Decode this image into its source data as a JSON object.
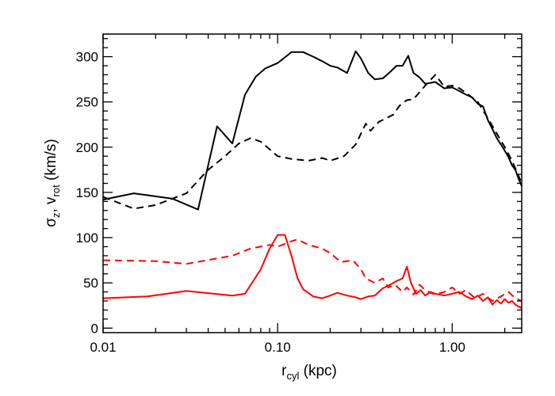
{
  "chart_data": {
    "type": "line",
    "title": "",
    "xlabel": {
      "main": "r",
      "sub": "cyl",
      "rest": " (kpc)"
    },
    "ylabel": {
      "p1": "σ",
      "s1": "z",
      "p2": ", v",
      "s2": "rot",
      "p3": " (km/s)"
    },
    "xscale": "log",
    "xlim": [
      0.01,
      2.5
    ],
    "ylim": [
      -5,
      325
    ],
    "x_ticks": [
      {
        "value": 0.01,
        "label": "0.01"
      },
      {
        "value": 0.1,
        "label": "0.10"
      },
      {
        "value": 1.0,
        "label": "1.00"
      }
    ],
    "y_ticks": [
      {
        "value": 0,
        "label": "0"
      },
      {
        "value": 50,
        "label": "50"
      },
      {
        "value": 100,
        "label": "100"
      },
      {
        "value": 150,
        "label": "150"
      },
      {
        "value": 200,
        "label": "200"
      },
      {
        "value": 250,
        "label": "250"
      },
      {
        "value": 300,
        "label": "300"
      }
    ],
    "grid": false,
    "series": [
      {
        "color": "#000000",
        "dash": "solid",
        "x": [
          0.01,
          0.015,
          0.025,
          0.035,
          0.045,
          0.055,
          0.065,
          0.075,
          0.085,
          0.1,
          0.12,
          0.14,
          0.16,
          0.18,
          0.2,
          0.22,
          0.25,
          0.28,
          0.3,
          0.33,
          0.36,
          0.4,
          0.44,
          0.48,
          0.52,
          0.56,
          0.6,
          0.65,
          0.7,
          0.8,
          0.9,
          1.0,
          1.1,
          1.2,
          1.3,
          1.4,
          1.5,
          1.6,
          1.7,
          1.8,
          1.9,
          2.0,
          2.1,
          2.2,
          2.3,
          2.4,
          2.5
        ],
        "y": [
          142,
          149,
          143,
          131,
          223,
          204,
          258,
          278,
          287,
          293,
          305,
          305,
          300,
          295,
          290,
          288,
          282,
          306,
          298,
          282,
          275,
          276,
          283,
          290,
          290,
          301,
          282,
          277,
          270,
          272,
          265,
          266,
          262,
          258,
          255,
          248,
          245,
          230,
          220,
          210,
          203,
          196,
          189,
          180,
          175,
          165,
          157
        ]
      },
      {
        "color": "#000000",
        "dash": "dashed",
        "x": [
          0.01,
          0.015,
          0.02,
          0.03,
          0.04,
          0.05,
          0.06,
          0.07,
          0.08,
          0.1,
          0.12,
          0.15,
          0.18,
          0.2,
          0.24,
          0.28,
          0.32,
          0.34,
          0.38,
          0.42,
          0.46,
          0.5,
          0.55,
          0.6,
          0.7,
          0.8,
          0.9,
          1.0,
          1.1,
          1.2,
          1.4,
          1.6,
          1.8,
          2.0,
          2.2,
          2.5
        ],
        "y": [
          145,
          132,
          136,
          149,
          175,
          190,
          204,
          210,
          206,
          190,
          187,
          185,
          188,
          185,
          190,
          203,
          226,
          218,
          228,
          232,
          236,
          246,
          252,
          253,
          268,
          280,
          267,
          268,
          265,
          260,
          250,
          232,
          215,
          200,
          185,
          160
        ]
      },
      {
        "color": "#ff0000",
        "dash": "solid",
        "x": [
          0.01,
          0.018,
          0.03,
          0.055,
          0.065,
          0.08,
          0.09,
          0.1,
          0.105,
          0.11,
          0.12,
          0.13,
          0.14,
          0.16,
          0.18,
          0.2,
          0.22,
          0.25,
          0.28,
          0.3,
          0.33,
          0.36,
          0.4,
          0.44,
          0.48,
          0.52,
          0.55,
          0.58,
          0.62,
          0.66,
          0.7,
          0.75,
          0.8,
          0.9,
          1.0,
          1.1,
          1.2,
          1.3,
          1.4,
          1.5,
          1.6,
          1.7,
          1.8,
          1.9,
          2.0,
          2.1,
          2.2,
          2.3,
          2.5
        ],
        "y": [
          33,
          35,
          41,
          36,
          38,
          65,
          88,
          103,
          103,
          103,
          80,
          55,
          43,
          35,
          33,
          36,
          39,
          36,
          34,
          32,
          35,
          36,
          44,
          48,
          52,
          55,
          68,
          50,
          38,
          42,
          36,
          40,
          38,
          36,
          38,
          40,
          35,
          32,
          36,
          30,
          34,
          26,
          31,
          27,
          32,
          28,
          30,
          26,
          22
        ]
      },
      {
        "color": "#ff0000",
        "dash": "dashed",
        "x": [
          0.01,
          0.02,
          0.03,
          0.055,
          0.07,
          0.09,
          0.1,
          0.12,
          0.13,
          0.15,
          0.18,
          0.2,
          0.23,
          0.27,
          0.3,
          0.32,
          0.36,
          0.4,
          0.43,
          0.47,
          0.52,
          0.55,
          0.6,
          0.65,
          0.7,
          0.75,
          0.8,
          0.9,
          1.0,
          1.1,
          1.2,
          1.35,
          1.5,
          1.7,
          1.9,
          2.1,
          2.3,
          2.5
        ],
        "y": [
          75,
          74,
          71,
          80,
          88,
          92,
          90,
          96,
          98,
          92,
          88,
          83,
          73,
          75,
          65,
          55,
          50,
          55,
          45,
          48,
          40,
          45,
          37,
          48,
          42,
          39,
          37,
          40,
          45,
          38,
          42,
          33,
          38,
          30,
          35,
          40,
          33,
          30
        ]
      }
    ]
  }
}
